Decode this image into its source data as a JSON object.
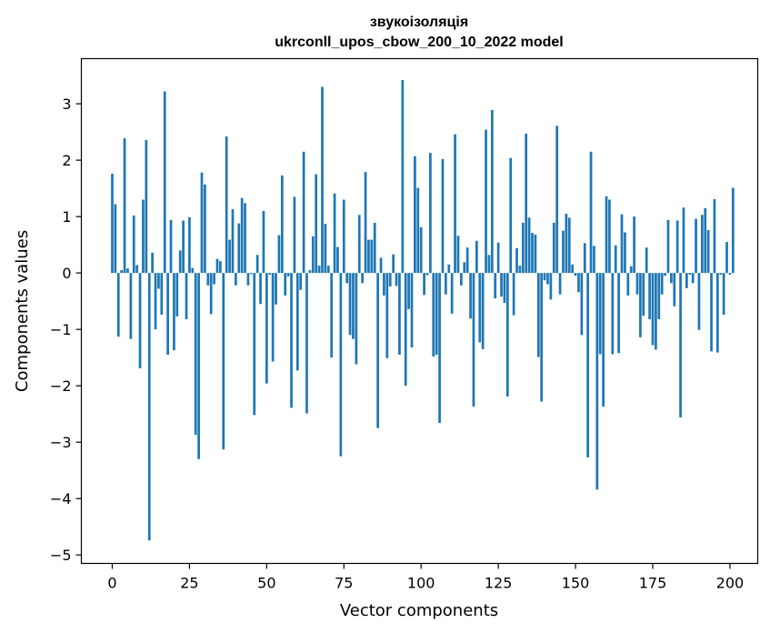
{
  "chart_data": {
    "type": "bar",
    "title_line1": "звукоізоляція",
    "title_line2": "ukrconll_upos_cbow_200_10_2022 model",
    "xlabel": "Vector components",
    "ylabel": "Components values",
    "xlim": [
      -10,
      209
    ],
    "ylim": [
      -5.15,
      3.8
    ],
    "xticks": [
      0,
      25,
      50,
      75,
      100,
      125,
      150,
      175,
      200
    ],
    "yticks": [
      -5,
      -4,
      -3,
      -2,
      -1,
      0,
      1,
      2,
      3
    ],
    "xtick_labels": [
      "0",
      "25",
      "50",
      "75",
      "100",
      "125",
      "150",
      "175",
      "200"
    ],
    "ytick_labels": [
      "−5",
      "−4",
      "−3",
      "−2",
      "−1",
      "0",
      "1",
      "2",
      "3"
    ],
    "grid": false,
    "color": "#1f77b4",
    "values": [
      1.76,
      1.22,
      -1.13,
      0.05,
      2.39,
      0.08,
      -1.17,
      1.02,
      0.14,
      -1.69,
      1.3,
      2.36,
      -4.74,
      0.36,
      -1.0,
      -0.28,
      -0.74,
      3.22,
      -1.45,
      0.94,
      -1.37,
      -0.77,
      0.4,
      0.93,
      -0.82,
      0.99,
      0.09,
      -2.87,
      -3.3,
      1.78,
      1.57,
      -0.22,
      -0.73,
      -0.2,
      0.25,
      0.21,
      -3.13,
      2.42,
      0.59,
      1.13,
      -0.22,
      0.88,
      1.33,
      1.24,
      -0.22,
      -0.02,
      -2.52,
      0.32,
      -0.55,
      1.1,
      -1.96,
      -0.03,
      -1.57,
      -0.56,
      0.67,
      1.73,
      -0.4,
      -0.06,
      -2.39,
      1.35,
      -1.73,
      -0.3,
      2.15,
      -2.49,
      0.05,
      0.65,
      1.75,
      0.13,
      3.3,
      0.87,
      0.13,
      -1.5,
      1.41,
      0.46,
      -3.25,
      1.3,
      -0.18,
      -1.1,
      -1.17,
      -1.62,
      1.03,
      -0.18,
      1.79,
      0.59,
      0.59,
      0.89,
      -2.75,
      0.27,
      -0.4,
      -1.51,
      -0.24,
      0.33,
      -0.23,
      -1.45,
      3.42,
      -2.0,
      -0.64,
      -1.32,
      2.07,
      1.51,
      0.81,
      -0.39,
      -0.04,
      2.13,
      -1.48,
      -1.45,
      -2.66,
      2.02,
      -0.38,
      0.15,
      -0.72,
      2.46,
      0.66,
      -0.22,
      0.19,
      0.45,
      -0.81,
      -2.37,
      0.57,
      -1.23,
      -1.35,
      2.54,
      0.32,
      2.89,
      -0.45,
      0.54,
      -0.42,
      -0.53,
      -2.19,
      2.04,
      -0.75,
      0.44,
      0.13,
      0.89,
      2.47,
      0.98,
      0.71,
      0.68,
      -1.49,
      -2.28,
      -0.13,
      -0.2,
      -0.47,
      0.89,
      2.61,
      -0.38,
      0.75,
      1.05,
      0.98,
      0.15,
      -0.05,
      -0.34,
      -1.1,
      0.53,
      -3.27,
      2.15,
      0.48,
      -3.84,
      -1.44,
      -2.37,
      1.36,
      1.3,
      -1.44,
      0.49,
      -1.42,
      1.04,
      0.72,
      -0.4,
      0.12,
      1.0,
      -0.38,
      -1.14,
      -0.76,
      0.45,
      -0.82,
      -1.28,
      -1.36,
      -0.82,
      -0.38,
      -0.05,
      0.94,
      -0.18,
      -0.59,
      0.93,
      -2.56,
      1.16,
      -0.27,
      -0.03,
      -0.18,
      0.96,
      -1.01,
      1.03,
      1.15,
      0.76,
      -1.39,
      1.31,
      -1.41,
      -0.03,
      -0.74,
      0.55,
      -0.03,
      1.51
    ]
  }
}
